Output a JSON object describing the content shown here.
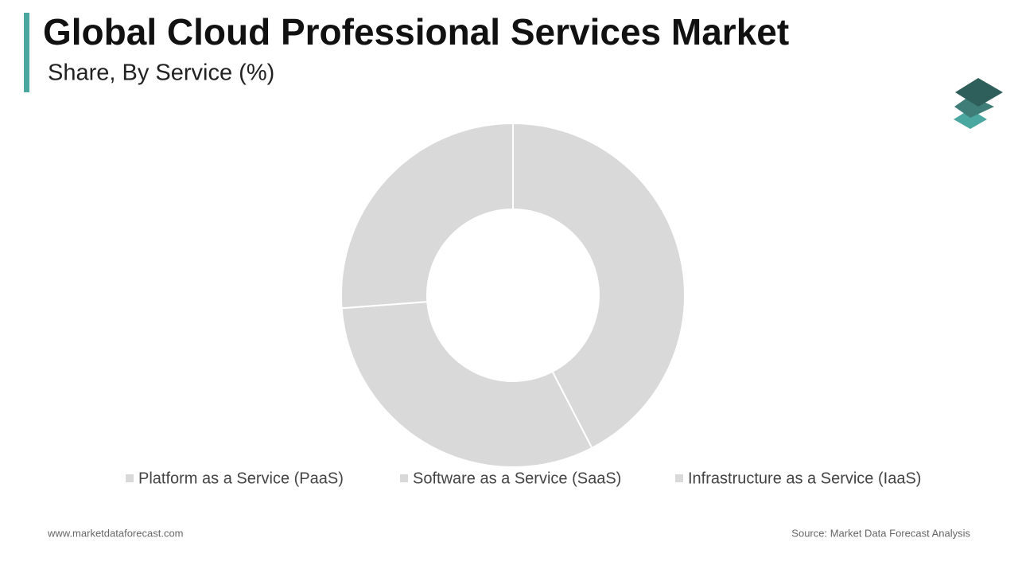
{
  "chart_data": {
    "type": "donut",
    "title": "Global Cloud Professional Services Market",
    "subtitle": "Share, By Service (%)",
    "categories": [
      "Platform as a Service (PaaS)",
      "Software as a Service (SaaS)",
      "Infrastructure as a Service (IaaS)"
    ],
    "values": [
      42.4,
      31.4,
      26.2
    ],
    "colors": [
      "#d9d9d9",
      "#d9d9d9",
      "#d9d9d9"
    ],
    "legend": "bottom",
    "footer_left": "www.marketdataforecast.com",
    "footer_right": "Source: Market Data Forecast Analysis"
  }
}
